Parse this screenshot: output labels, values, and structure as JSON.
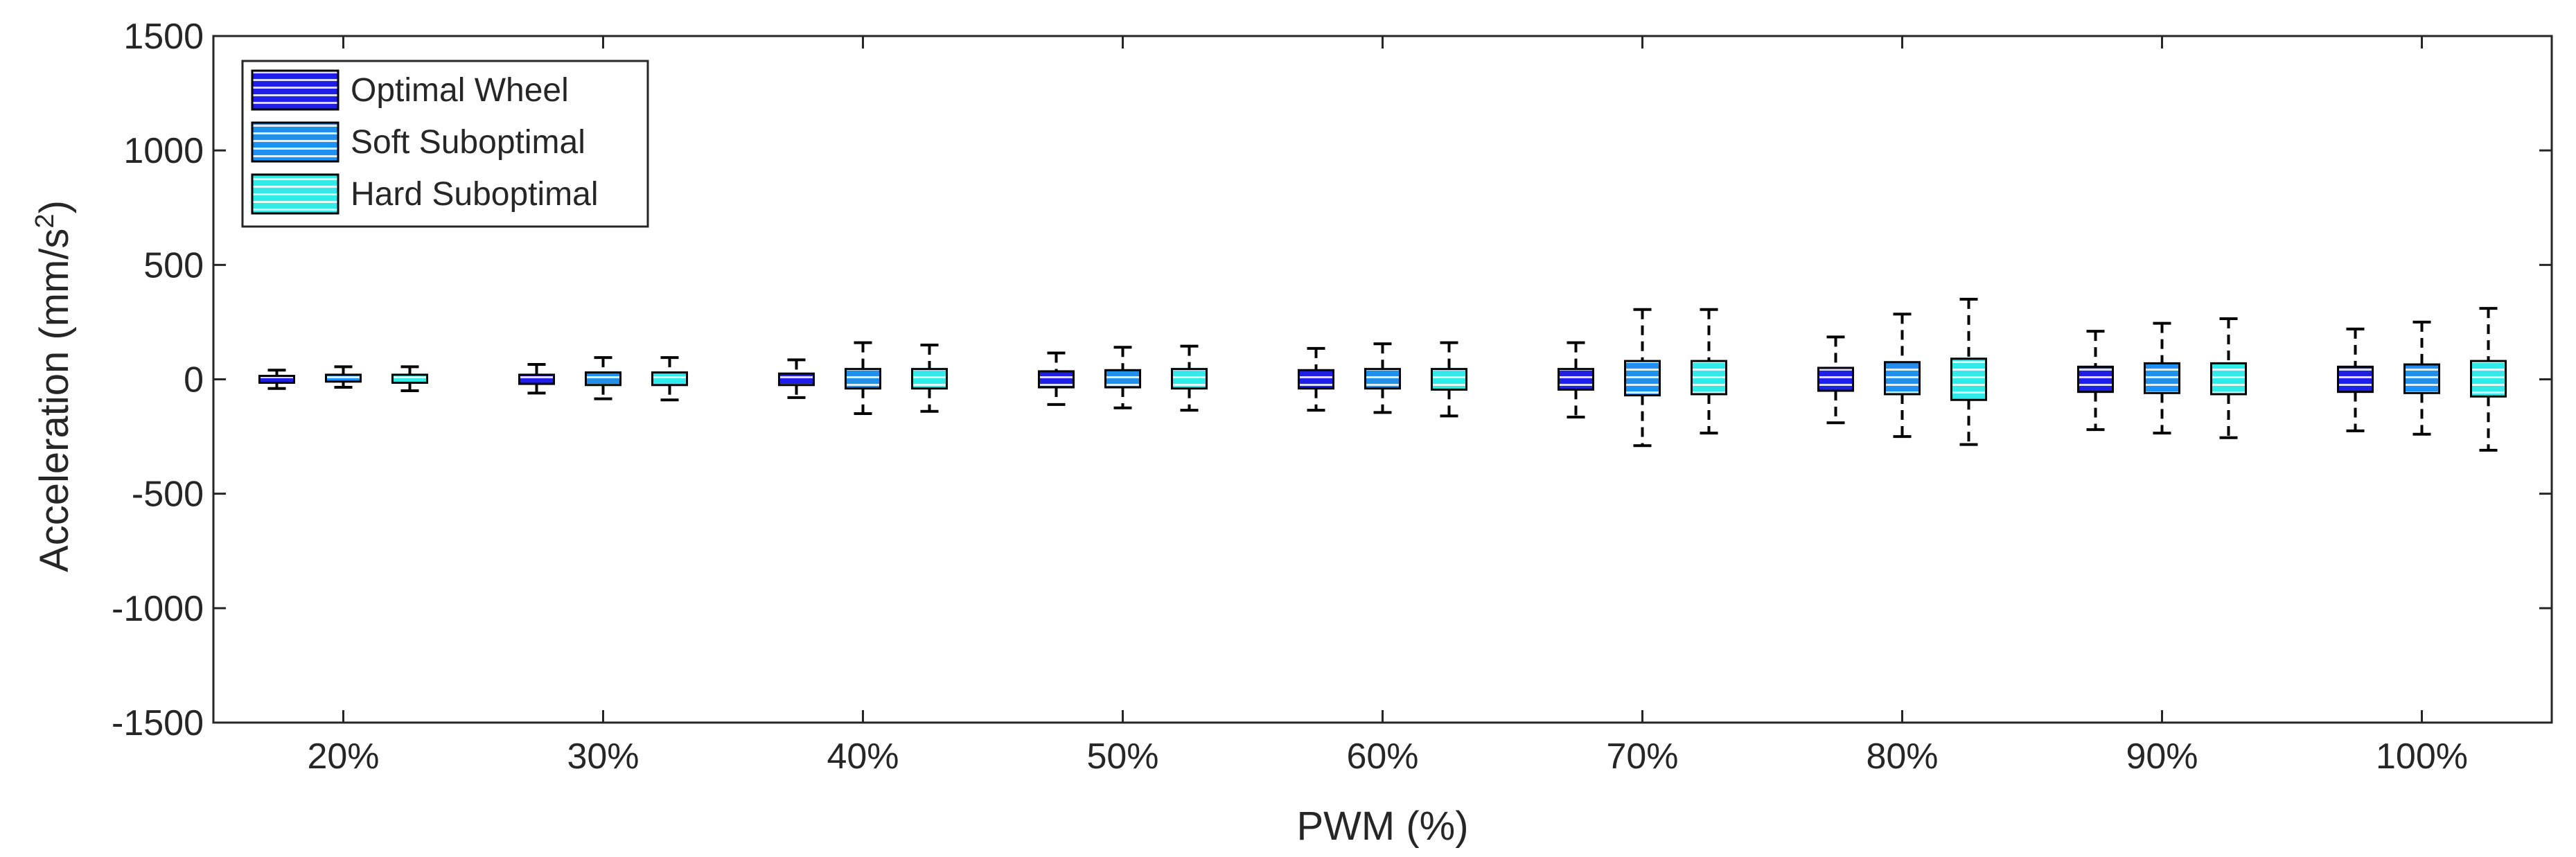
{
  "chart_data": {
    "type": "boxplot",
    "title": "",
    "xlabel": "PWM (%)",
    "ylabel_main": "Acceleration (mm/s",
    "ylabel_sup": "2",
    "ylabel_close": ")",
    "ylim": [
      -1500,
      1500
    ],
    "yticks": [
      -1500,
      -1000,
      -500,
      0,
      500,
      1000,
      1500
    ],
    "ytick_labels": [
      "-1500",
      "-1000",
      "-500",
      "0",
      "500",
      "1000",
      "1500"
    ],
    "categories": [
      "20%",
      "30%",
      "40%",
      "50%",
      "60%",
      "70%",
      "80%",
      "90%",
      "100%"
    ],
    "grid": false,
    "legend_position": "top-left",
    "series": [
      {
        "name": "Optimal Wheel",
        "color": "#1f1fe8",
        "stripe_color": "#ffffff",
        "boxes": [
          {
            "whislo": -40,
            "q1": -15,
            "q3": 15,
            "whishi": 40
          },
          {
            "whislo": -60,
            "q1": -20,
            "q3": 20,
            "whishi": 65
          },
          {
            "whislo": -80,
            "q1": -25,
            "q3": 25,
            "whishi": 85
          },
          {
            "whislo": -110,
            "q1": -35,
            "q3": 35,
            "whishi": 115
          },
          {
            "whislo": -135,
            "q1": -40,
            "q3": 40,
            "whishi": 135
          },
          {
            "whislo": -165,
            "q1": -45,
            "q3": 45,
            "whishi": 160
          },
          {
            "whislo": -190,
            "q1": -50,
            "q3": 50,
            "whishi": 185
          },
          {
            "whislo": -220,
            "q1": -55,
            "q3": 55,
            "whishi": 210
          },
          {
            "whislo": -225,
            "q1": -55,
            "q3": 55,
            "whishi": 220
          }
        ]
      },
      {
        "name": "Soft Suboptimal",
        "color": "#1e90ef",
        "stripe_color": "#ffffff",
        "boxes": [
          {
            "whislo": -35,
            "q1": -10,
            "q3": 20,
            "whishi": 55
          },
          {
            "whislo": -85,
            "q1": -25,
            "q3": 30,
            "whishi": 95
          },
          {
            "whislo": -150,
            "q1": -40,
            "q3": 45,
            "whishi": 160
          },
          {
            "whislo": -125,
            "q1": -35,
            "q3": 40,
            "whishi": 140
          },
          {
            "whislo": -145,
            "q1": -40,
            "q3": 45,
            "whishi": 155
          },
          {
            "whislo": -290,
            "q1": -70,
            "q3": 80,
            "whishi": 305
          },
          {
            "whislo": -250,
            "q1": -65,
            "q3": 75,
            "whishi": 285
          },
          {
            "whislo": -235,
            "q1": -60,
            "q3": 70,
            "whishi": 245
          },
          {
            "whislo": -240,
            "q1": -60,
            "q3": 65,
            "whishi": 250
          }
        ]
      },
      {
        "name": "Hard Suboptimal",
        "color": "#33eaea",
        "stripe_color": "#ffffff",
        "boxes": [
          {
            "whislo": -50,
            "q1": -15,
            "q3": 20,
            "whishi": 55
          },
          {
            "whislo": -90,
            "q1": -25,
            "q3": 30,
            "whishi": 95
          },
          {
            "whislo": -140,
            "q1": -40,
            "q3": 45,
            "whishi": 150
          },
          {
            "whislo": -135,
            "q1": -40,
            "q3": 45,
            "whishi": 145
          },
          {
            "whislo": -160,
            "q1": -45,
            "q3": 45,
            "whishi": 160
          },
          {
            "whislo": -235,
            "q1": -65,
            "q3": 80,
            "whishi": 305
          },
          {
            "whislo": -285,
            "q1": -90,
            "q3": 90,
            "whishi": 350
          },
          {
            "whislo": -255,
            "q1": -65,
            "q3": 70,
            "whishi": 265
          },
          {
            "whislo": -310,
            "q1": -75,
            "q3": 80,
            "whishi": 310
          }
        ]
      }
    ]
  }
}
